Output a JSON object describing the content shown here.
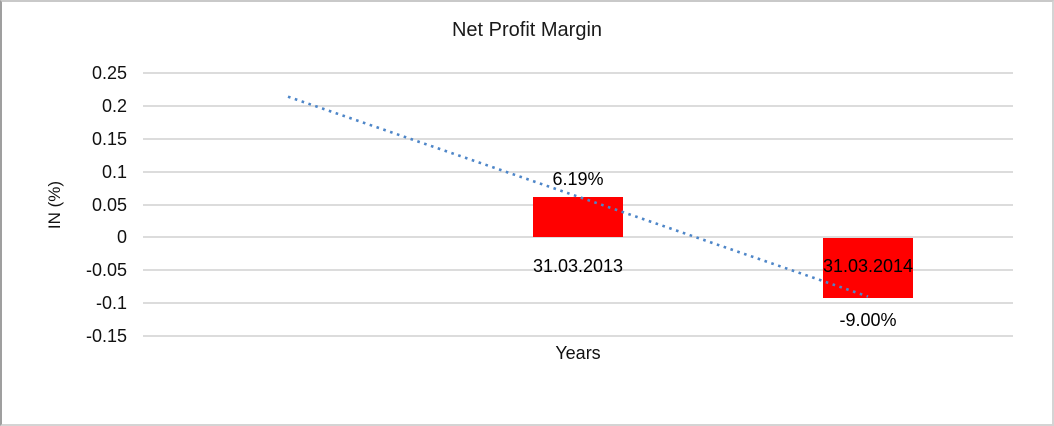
{
  "chart_data": {
    "type": "bar",
    "title": "Net Profit Margin",
    "xlabel": "Years",
    "ylabel": "IN (%)",
    "categories": [
      "31.03.2013",
      "31.03.2014"
    ],
    "values": [
      0.0619,
      -0.09
    ],
    "data_labels": [
      "6.19%",
      "-9.00%"
    ],
    "y_ticks": [
      "0.25",
      "0.2",
      "0.15",
      "0.1",
      "0.05",
      "0",
      "-0.05",
      "-0.1",
      "-0.15"
    ],
    "ylim": [
      -0.15,
      0.25
    ],
    "grid": true,
    "legend": "none",
    "bar_color": "#ff0000",
    "gridline_color": "#dcdcdc",
    "trendline": {
      "type": "linear",
      "style": "dotted",
      "color": "#4e86c8",
      "start_value": 0.214,
      "end_value": -0.09,
      "extends_one_category_before_first_bar": true
    }
  }
}
